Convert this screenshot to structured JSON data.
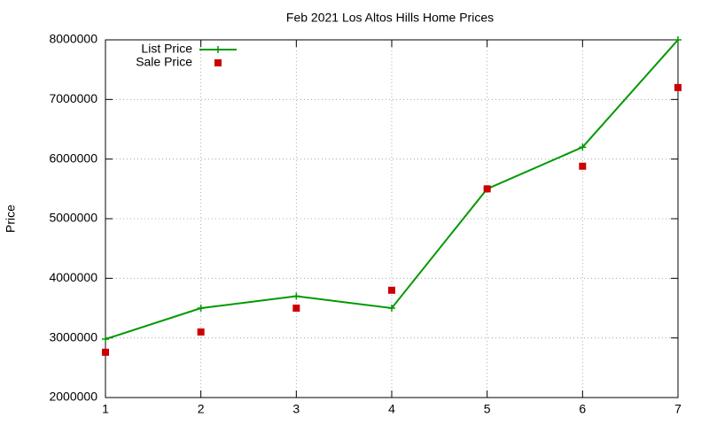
{
  "chart_data": {
    "type": "line",
    "title": "Feb 2021 Los Altos Hills Home Prices",
    "y_label": "Price",
    "x": [
      1,
      2,
      3,
      4,
      5,
      6,
      7
    ],
    "series": [
      {
        "name": "List Price",
        "color": "#009900",
        "mode": "lines+markers",
        "marker": "plus",
        "values": [
          2980000,
          3500000,
          3700000,
          3500000,
          5500000,
          6200000,
          8000000
        ]
      },
      {
        "name": "Sale Price",
        "color": "#cc0000",
        "mode": "markers",
        "marker": "square",
        "values": [
          2760000,
          3100000,
          3500000,
          3800000,
          5500000,
          5880000,
          7200000
        ]
      }
    ],
    "xlim": [
      1,
      7
    ],
    "xticks": [
      1,
      2,
      3,
      4,
      5,
      6,
      7
    ],
    "ylim": [
      2000000,
      8000000
    ],
    "yticks": [
      2000000,
      3000000,
      4000000,
      5000000,
      6000000,
      7000000,
      8000000
    ],
    "grid": true,
    "legend": "top-left"
  }
}
